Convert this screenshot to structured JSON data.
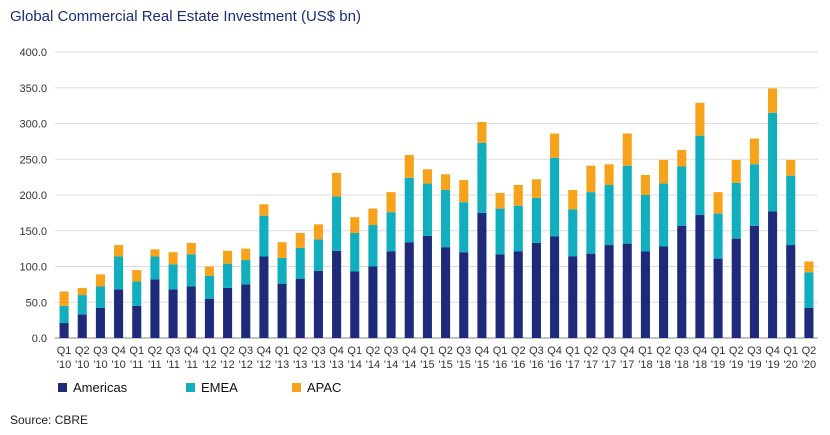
{
  "title": "Global Commercial Real Estate Investment (US$ bn)",
  "source": "Source: CBRE",
  "colors": {
    "Americas": "#1f2a7a",
    "EMEA": "#11aebd",
    "APAC": "#f7a21b",
    "grid": "#dddddd",
    "axis": "#888888",
    "text": "#333333"
  },
  "chart_data": {
    "type": "bar",
    "stacked": true,
    "title": "Global Commercial Real Estate Investment (US$ bn)",
    "xlabel": "",
    "ylabel": "",
    "ylim": [
      0,
      400
    ],
    "yticks": [
      "0.0",
      "50.0",
      "100.0",
      "150.0",
      "200.0",
      "250.0",
      "300.0",
      "350.0",
      "400.0"
    ],
    "grid": true,
    "legend_position": "bottom-left",
    "categories": [
      [
        "Q1",
        "'10"
      ],
      [
        "Q2",
        "'10"
      ],
      [
        "Q3",
        "'10"
      ],
      [
        "Q4",
        "'10"
      ],
      [
        "Q1",
        "'11"
      ],
      [
        "Q2",
        "'11"
      ],
      [
        "Q3",
        "'11"
      ],
      [
        "Q4",
        "'11"
      ],
      [
        "Q1",
        "'12"
      ],
      [
        "Q2",
        "'12"
      ],
      [
        "Q3",
        "'12"
      ],
      [
        "Q4",
        "'12"
      ],
      [
        "Q1",
        "'13"
      ],
      [
        "Q2",
        "'13"
      ],
      [
        "Q3",
        "'13"
      ],
      [
        "Q4",
        "'13"
      ],
      [
        "Q1",
        "'14"
      ],
      [
        "Q2",
        "'14"
      ],
      [
        "Q3",
        "'14"
      ],
      [
        "Q4",
        "'14"
      ],
      [
        "Q1",
        "'15"
      ],
      [
        "Q2",
        "'15"
      ],
      [
        "Q3",
        "'15"
      ],
      [
        "Q4",
        "'15"
      ],
      [
        "Q1",
        "'16"
      ],
      [
        "Q2",
        "'16"
      ],
      [
        "Q3",
        "'16"
      ],
      [
        "Q4",
        "'16"
      ],
      [
        "Q1",
        "'17"
      ],
      [
        "Q2",
        "'17"
      ],
      [
        "Q3",
        "'17"
      ],
      [
        "Q4",
        "'17"
      ],
      [
        "Q1",
        "'18"
      ],
      [
        "Q2",
        "'18"
      ],
      [
        "Q3",
        "'18"
      ],
      [
        "Q4",
        "'18"
      ],
      [
        "Q1",
        "'19"
      ],
      [
        "Q2",
        "'19"
      ],
      [
        "Q3",
        "'19"
      ],
      [
        "Q4",
        "'19"
      ],
      [
        "Q1",
        "'20"
      ],
      [
        "Q2",
        "'20"
      ]
    ],
    "series": [
      {
        "name": "Americas",
        "values": [
          21,
          33,
          42,
          68,
          45,
          82,
          68,
          72,
          55,
          70,
          75,
          114,
          76,
          83,
          94,
          122,
          93,
          100,
          121,
          134,
          143,
          127,
          120,
          175,
          117,
          121,
          133,
          142,
          114,
          118,
          130,
          132,
          121,
          128,
          157,
          172,
          111,
          139,
          157,
          177,
          130,
          42
        ]
      },
      {
        "name": "EMEA",
        "values": [
          24,
          27,
          30,
          46,
          34,
          32,
          35,
          45,
          32,
          34,
          34,
          57,
          36,
          43,
          44,
          76,
          54,
          58,
          55,
          90,
          73,
          80,
          70,
          98,
          64,
          64,
          63,
          110,
          66,
          86,
          84,
          109,
          79,
          88,
          83,
          111,
          63,
          78,
          86,
          138,
          97,
          50
        ]
      },
      {
        "name": "APAC",
        "values": [
          20,
          10,
          17,
          16,
          16,
          10,
          17,
          16,
          13,
          18,
          16,
          16,
          22,
          21,
          21,
          33,
          22,
          23,
          28,
          32,
          20,
          22,
          31,
          29,
          22,
          29,
          26,
          34,
          27,
          37,
          29,
          45,
          28,
          33,
          23,
          46,
          30,
          32,
          36,
          34,
          22,
          15
        ]
      }
    ]
  }
}
